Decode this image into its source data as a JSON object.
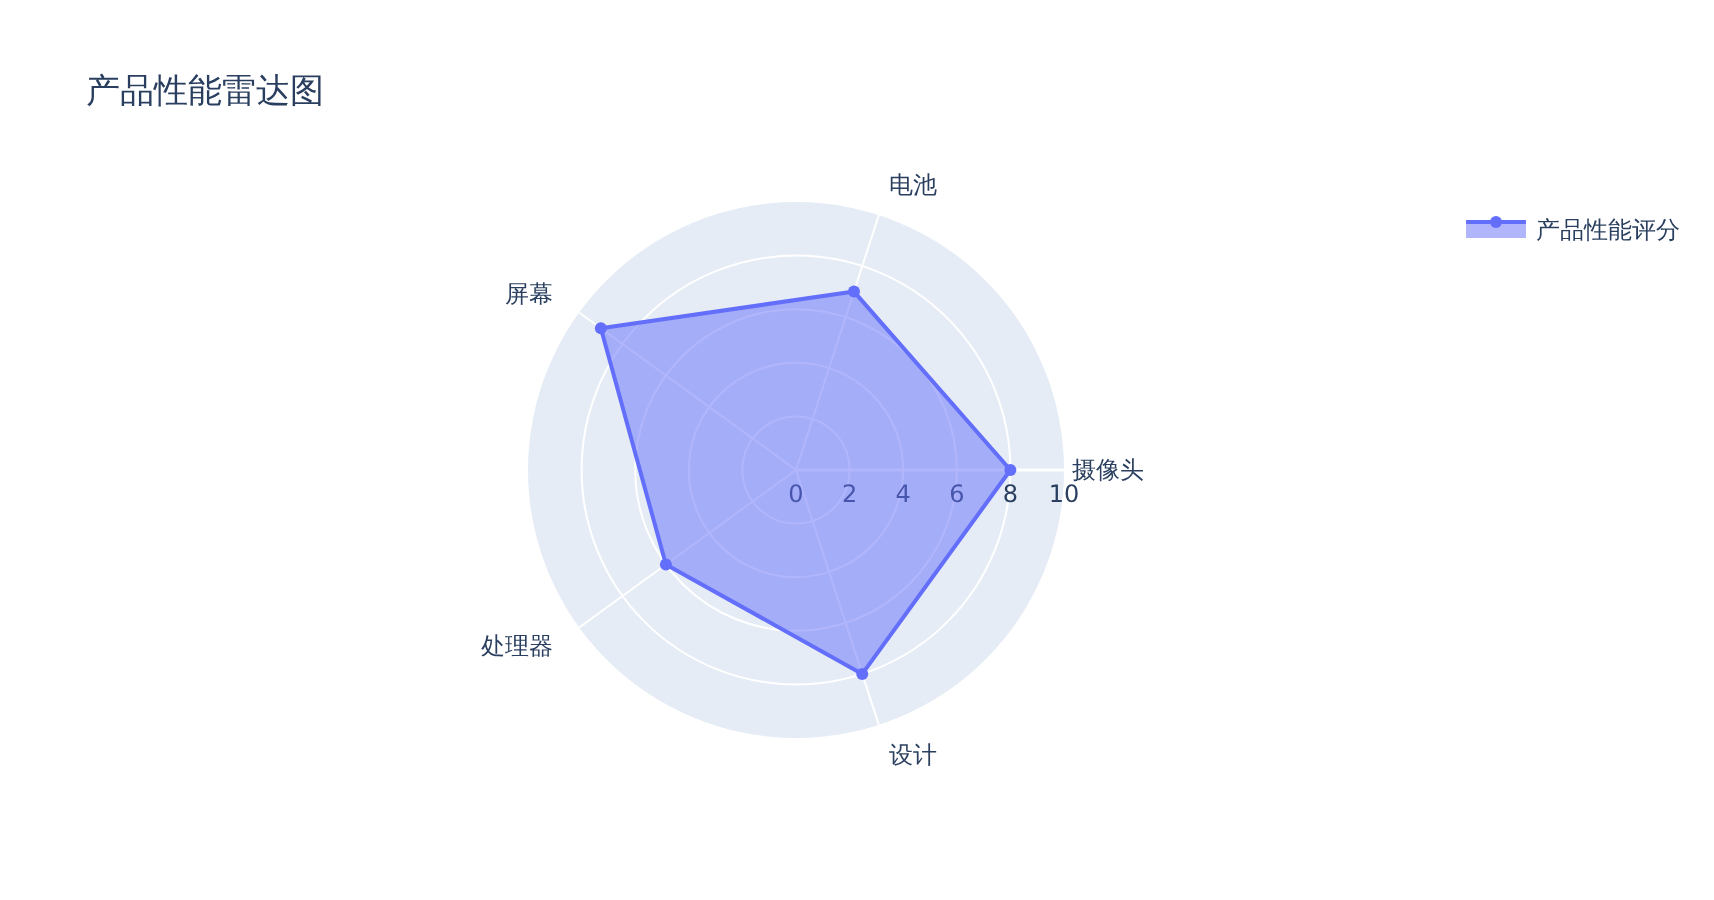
{
  "chart_data": {
    "type": "radar",
    "title": "产品性能雷达图",
    "categories": [
      "电池",
      "摄像头",
      "设计",
      "处理器",
      "屏幕"
    ],
    "series": [
      {
        "name": "产品性能评分",
        "color": "#636efa",
        "values": [
          7,
          8,
          8,
          6,
          9
        ]
      }
    ],
    "ylim": [
      0,
      10
    ],
    "yticks": [
      0,
      2,
      4,
      6,
      8,
      10
    ],
    "grid": true,
    "legend": "top right",
    "marker": "circle"
  }
}
